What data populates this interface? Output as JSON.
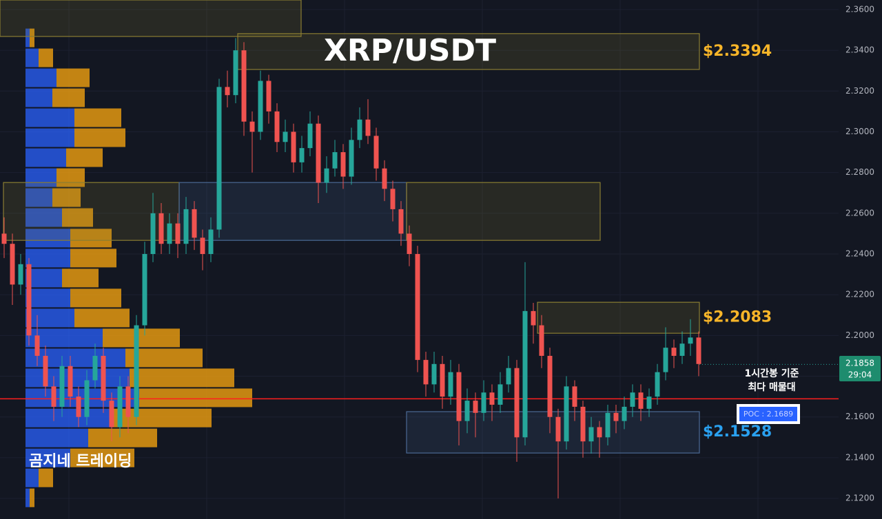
{
  "chart_data": {
    "type": "candlestick",
    "title": "XRP/USDT",
    "ylim": [
      2.1099,
      2.3647
    ],
    "yticks": [
      {
        "value": 2.12,
        "label": "2.1200"
      },
      {
        "value": 2.14,
        "label": "2.1400"
      },
      {
        "value": 2.16,
        "label": "2.1600"
      },
      {
        "value": 2.18,
        "label": "2.1800"
      },
      {
        "value": 2.2,
        "label": "2.2000"
      },
      {
        "value": 2.22,
        "label": "2.2200"
      },
      {
        "value": 2.24,
        "label": "2.2400"
      },
      {
        "value": 2.26,
        "label": "2.2600"
      },
      {
        "value": 2.28,
        "label": "2.2800"
      },
      {
        "value": 2.3,
        "label": "2.3000"
      },
      {
        "value": 2.32,
        "label": "2.3200"
      },
      {
        "value": 2.34,
        "label": "2.3400"
      },
      {
        "value": 2.36,
        "label": "2.3600"
      }
    ],
    "grid": true,
    "series": [
      {
        "up_color": "#26a69a",
        "down_color": "#ef5350",
        "values": [
          [
            2.25,
            2.258,
            2.238,
            2.245
          ],
          [
            2.245,
            2.25,
            2.215,
            2.225
          ],
          [
            2.225,
            2.24,
            2.22,
            2.235
          ],
          [
            2.235,
            2.238,
            2.195,
            2.2
          ],
          [
            2.2,
            2.21,
            2.185,
            2.19
          ],
          [
            2.19,
            2.195,
            2.17,
            2.175
          ],
          [
            2.175,
            2.18,
            2.158,
            2.165
          ],
          [
            2.165,
            2.19,
            2.16,
            2.185
          ],
          [
            2.185,
            2.19,
            2.165,
            2.17
          ],
          [
            2.17,
            2.175,
            2.155,
            2.16
          ],
          [
            2.16,
            2.183,
            2.156,
            2.178
          ],
          [
            2.178,
            2.196,
            2.174,
            2.19
          ],
          [
            2.19,
            2.194,
            2.162,
            2.168
          ],
          [
            2.168,
            2.172,
            2.148,
            2.155
          ],
          [
            2.155,
            2.18,
            2.15,
            2.175
          ],
          [
            2.175,
            2.18,
            2.152,
            2.16
          ],
          [
            2.16,
            2.21,
            2.156,
            2.205
          ],
          [
            2.205,
            2.246,
            2.2,
            2.24
          ],
          [
            2.24,
            2.27,
            2.236,
            2.26
          ],
          [
            2.26,
            2.265,
            2.24,
            2.245
          ],
          [
            2.245,
            2.26,
            2.24,
            2.255
          ],
          [
            2.255,
            2.26,
            2.238,
            2.245
          ],
          [
            2.245,
            2.268,
            2.24,
            2.262
          ],
          [
            2.262,
            2.266,
            2.242,
            2.248
          ],
          [
            2.248,
            2.252,
            2.232,
            2.24
          ],
          [
            2.24,
            2.258,
            2.236,
            2.252
          ],
          [
            2.252,
            2.326,
            2.248,
            2.322
          ],
          [
            2.322,
            2.33,
            2.312,
            2.318
          ],
          [
            2.318,
            2.346,
            2.314,
            2.34
          ],
          [
            2.34,
            2.344,
            2.298,
            2.305
          ],
          [
            2.305,
            2.31,
            2.28,
            2.3
          ],
          [
            2.3,
            2.33,
            2.296,
            2.325
          ],
          [
            2.325,
            2.328,
            2.304,
            2.31
          ],
          [
            2.31,
            2.314,
            2.29,
            2.295
          ],
          [
            2.295,
            2.306,
            2.29,
            2.3
          ],
          [
            2.3,
            2.304,
            2.28,
            2.285
          ],
          [
            2.285,
            2.298,
            2.28,
            2.292
          ],
          [
            2.292,
            2.31,
            2.288,
            2.304
          ],
          [
            2.304,
            2.308,
            2.265,
            2.275
          ],
          [
            2.275,
            2.288,
            2.27,
            2.282
          ],
          [
            2.282,
            2.296,
            2.278,
            2.29
          ],
          [
            2.29,
            2.294,
            2.272,
            2.278
          ],
          [
            2.278,
            2.302,
            2.274,
            2.296
          ],
          [
            2.296,
            2.312,
            2.292,
            2.306
          ],
          [
            2.306,
            2.316,
            2.294,
            2.298
          ],
          [
            2.298,
            2.302,
            2.276,
            2.282
          ],
          [
            2.282,
            2.286,
            2.266,
            2.272
          ],
          [
            2.272,
            2.276,
            2.256,
            2.262
          ],
          [
            2.262,
            2.266,
            2.244,
            2.25
          ],
          [
            2.25,
            2.254,
            2.234,
            2.24
          ],
          [
            2.24,
            2.244,
            2.182,
            2.188
          ],
          [
            2.188,
            2.192,
            2.17,
            2.176
          ],
          [
            2.176,
            2.192,
            2.172,
            2.186
          ],
          [
            2.186,
            2.19,
            2.164,
            2.17
          ],
          [
            2.17,
            2.188,
            2.166,
            2.182
          ],
          [
            2.182,
            2.186,
            2.146,
            2.158
          ],
          [
            2.158,
            2.174,
            2.152,
            2.168
          ],
          [
            2.168,
            2.172,
            2.15,
            2.162
          ],
          [
            2.162,
            2.178,
            2.158,
            2.172
          ],
          [
            2.172,
            2.176,
            2.158,
            2.166
          ],
          [
            2.166,
            2.182,
            2.162,
            2.176
          ],
          [
            2.176,
            2.19,
            2.172,
            2.184
          ],
          [
            2.184,
            2.188,
            2.138,
            2.15
          ],
          [
            2.15,
            2.236,
            2.146,
            2.212
          ],
          [
            2.212,
            2.216,
            2.196,
            2.205
          ],
          [
            2.205,
            2.21,
            2.184,
            2.19
          ],
          [
            2.19,
            2.194,
            2.152,
            2.16
          ],
          [
            2.16,
            2.164,
            2.12,
            2.148
          ],
          [
            2.148,
            2.18,
            2.144,
            2.175
          ],
          [
            2.175,
            2.178,
            2.158,
            2.165
          ],
          [
            2.165,
            2.168,
            2.14,
            2.148
          ],
          [
            2.148,
            2.16,
            2.142,
            2.155
          ],
          [
            2.155,
            2.158,
            2.14,
            2.15
          ],
          [
            2.15,
            2.166,
            2.146,
            2.162
          ],
          [
            2.162,
            2.166,
            2.152,
            2.158
          ],
          [
            2.158,
            2.17,
            2.154,
            2.165
          ],
          [
            2.165,
            2.176,
            2.16,
            2.172
          ],
          [
            2.172,
            2.176,
            2.158,
            2.164
          ],
          [
            2.164,
            2.174,
            2.16,
            2.17
          ],
          [
            2.17,
            2.186,
            2.166,
            2.182
          ],
          [
            2.182,
            2.204,
            2.178,
            2.194
          ],
          [
            2.194,
            2.198,
            2.184,
            2.19
          ],
          [
            2.19,
            2.202,
            2.186,
            2.196
          ],
          [
            2.196,
            2.208,
            2.19,
            2.199
          ],
          [
            2.199,
            2.202,
            2.18,
            2.186
          ]
        ]
      }
    ],
    "volume_profile": {
      "buy_color": "#2962ff",
      "sell_color": "#f0a010",
      "xlim": [
        0,
        400
      ],
      "prices": [
        2.3461,
        2.3363,
        2.3265,
        2.3167,
        2.3069,
        2.2971,
        2.2873,
        2.2775,
        2.2677,
        2.2579,
        2.2478,
        2.238,
        2.2282,
        2.2184,
        2.2086,
        2.1988,
        2.189,
        2.1792,
        2.1694,
        2.1595,
        2.1497,
        2.1399,
        2.1301,
        2.1203
      ],
      "buy": [
        6,
        19,
        45,
        39,
        71,
        71,
        59,
        45,
        39,
        53,
        65,
        65,
        53,
        65,
        71,
        112,
        145,
        151,
        165,
        125,
        91,
        65,
        19,
        6
      ],
      "sell": [
        7,
        21,
        48,
        47,
        68,
        74,
        53,
        41,
        41,
        45,
        60,
        67,
        53,
        74,
        80,
        112,
        112,
        152,
        164,
        145,
        100,
        93,
        21,
        7
      ]
    },
    "zones": [
      {
        "top": 2.3647,
        "bottom": 2.3468,
        "color": "#8a7d32"
      },
      {
        "top": 2.3482,
        "bottom": 2.3306,
        "color": "#8a7d32",
        "label": "$2.3394"
      },
      {
        "top": 2.2751,
        "bottom": 2.2467,
        "color": "#8a7d32"
      },
      {
        "top": 2.2751,
        "bottom": 2.2467,
        "color": "#4a6a95"
      },
      {
        "top": 2.2751,
        "bottom": 2.2467,
        "color": "#8a7d32"
      },
      {
        "top": 2.2163,
        "bottom": 2.2011,
        "color": "#8a7d32",
        "label": "$2.2083"
      },
      {
        "top": 2.1626,
        "bottom": 2.1423,
        "color": "#4a6a95",
        "label": "$2.1528"
      }
    ],
    "poc": {
      "value": 2.1689,
      "label": "POC : 2.1689",
      "color": "#ff1e1e"
    },
    "poc_note": [
      "1시간봉 기준",
      "최다 매물대"
    ],
    "last_price": 2.1858,
    "countdown": "29:04",
    "watermark": "곰지네 트레이딩"
  }
}
